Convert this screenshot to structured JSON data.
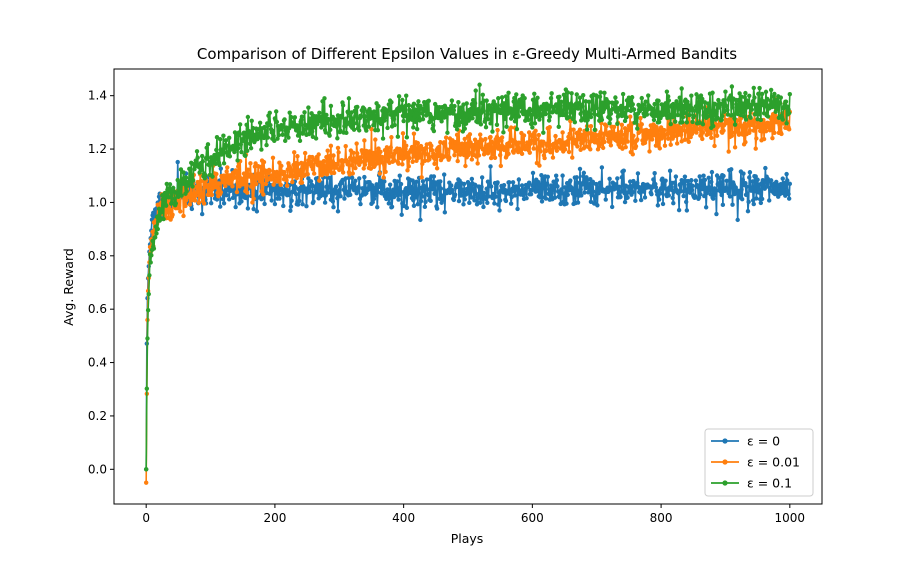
{
  "chart_data": {
    "type": "line",
    "title": "Comparison of Different Epsilon Values in ε-Greedy Multi-Armed Bandits",
    "xlabel": "Plays",
    "ylabel": "Avg. Reward",
    "xlim": [
      -50,
      1050
    ],
    "ylim": [
      -0.13,
      1.5
    ],
    "xticks": [
      0,
      200,
      400,
      600,
      800,
      1000
    ],
    "yticks": [
      0.0,
      0.2,
      0.4,
      0.6,
      0.8,
      1.0,
      1.2,
      1.4
    ],
    "xtick_labels": [
      "0",
      "200",
      "400",
      "600",
      "800",
      "1000"
    ],
    "ytick_labels": [
      "0.0",
      "0.2",
      "0.4",
      "0.6",
      "0.8",
      "1.0",
      "1.2",
      "1.4"
    ],
    "grid": false,
    "legend_position": "bottom-right",
    "x_samples": [
      0,
      1,
      2,
      3,
      4,
      5,
      6,
      8,
      10,
      12,
      15,
      20,
      25,
      30,
      40,
      50,
      60,
      75,
      100,
      125,
      150,
      175,
      200,
      250,
      300,
      350,
      400,
      450,
      500,
      550,
      600,
      650,
      700,
      750,
      800,
      850,
      900,
      950,
      1000
    ],
    "series": [
      {
        "name": "ε = 0",
        "color": "#1f77b4",
        "values": [
          0.0,
          0.44,
          0.62,
          0.72,
          0.78,
          0.82,
          0.86,
          0.9,
          0.93,
          0.95,
          0.97,
          0.99,
          1.0,
          1.01,
          1.02,
          1.025,
          1.03,
          1.035,
          1.04,
          1.04,
          1.045,
          1.045,
          1.045,
          1.045,
          1.045,
          1.045,
          1.045,
          1.045,
          1.045,
          1.045,
          1.045,
          1.045,
          1.05,
          1.05,
          1.05,
          1.05,
          1.05,
          1.05,
          1.05
        ],
        "noise": 0.032
      },
      {
        "name": "ε = 0.01",
        "color": "#ff7f0e",
        "values": [
          -0.05,
          0.3,
          0.55,
          0.66,
          0.73,
          0.78,
          0.82,
          0.86,
          0.89,
          0.92,
          0.95,
          0.97,
          0.98,
          0.99,
          1.0,
          1.01,
          1.02,
          1.04,
          1.06,
          1.08,
          1.09,
          1.1,
          1.11,
          1.13,
          1.15,
          1.165,
          1.18,
          1.19,
          1.2,
          1.21,
          1.22,
          1.23,
          1.24,
          1.25,
          1.26,
          1.27,
          1.28,
          1.29,
          1.3
        ],
        "noise": 0.03
      },
      {
        "name": "ε = 0.1",
        "color": "#2ca02c",
        "values": [
          0.0,
          0.3,
          0.5,
          0.6,
          0.68,
          0.74,
          0.78,
          0.82,
          0.85,
          0.88,
          0.92,
          0.95,
          0.97,
          0.99,
          1.02,
          1.05,
          1.08,
          1.12,
          1.15,
          1.2,
          1.23,
          1.26,
          1.27,
          1.29,
          1.31,
          1.32,
          1.33,
          1.335,
          1.335,
          1.34,
          1.34,
          1.345,
          1.345,
          1.35,
          1.35,
          1.35,
          1.35,
          1.355,
          1.36
        ],
        "noise": 0.033
      }
    ],
    "n_points": 1001,
    "noise_seed": 20240
  }
}
